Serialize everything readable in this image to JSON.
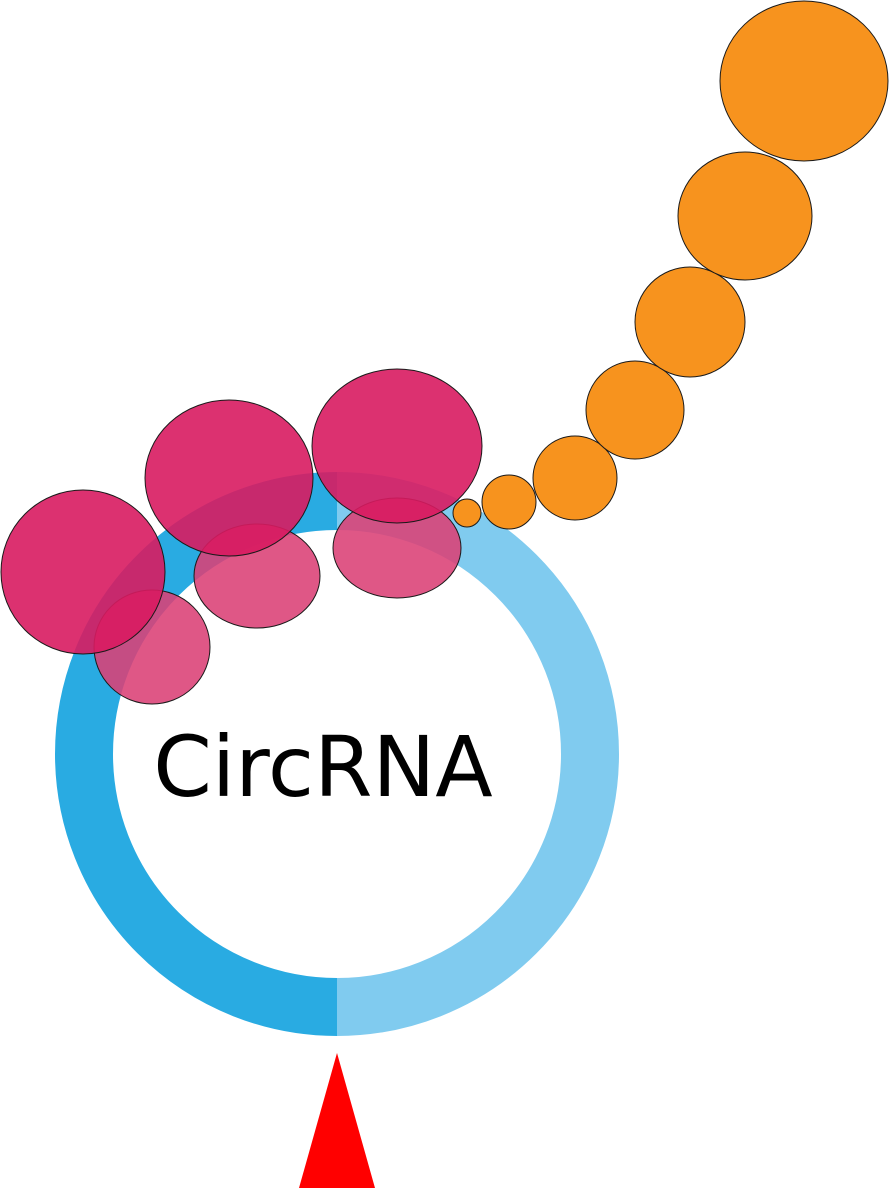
{
  "diagram": {
    "label": "CircRNA",
    "colors": {
      "ring_left": "#29abe2",
      "ring_right": "#80cbef",
      "ribosome_large": "#d81b60",
      "ribosome_small": "#db4075",
      "peptide": "#f7931e",
      "arrow": "#ff0000",
      "outline": "#1a1a1a"
    }
  }
}
